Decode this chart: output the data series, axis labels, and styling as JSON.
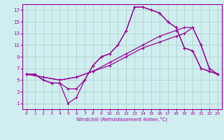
{
  "xlabel": "Windchill (Refroidissement éolien,°C)",
  "xlim": [
    -0.5,
    23.5
  ],
  "ylim": [
    0,
    18
  ],
  "xticks": [
    0,
    1,
    2,
    3,
    4,
    5,
    6,
    7,
    8,
    9,
    10,
    11,
    12,
    13,
    14,
    15,
    16,
    17,
    18,
    19,
    20,
    21,
    22,
    23
  ],
  "yticks": [
    1,
    3,
    5,
    7,
    9,
    11,
    13,
    15,
    17
  ],
  "bg_color": "#d0eef0",
  "line_color": "#990099",
  "grid_color": "#b0d8cc",
  "lines": [
    {
      "x": [
        0,
        1,
        2,
        3,
        4,
        5,
        6,
        7,
        8,
        9,
        10,
        11,
        12,
        13,
        14,
        15,
        16,
        17,
        18,
        19,
        20,
        21,
        22,
        23
      ],
      "y": [
        6,
        6,
        5,
        4.5,
        4.5,
        1,
        2,
        5,
        7.5,
        9,
        9.5,
        11,
        13.5,
        17.5,
        17.5,
        17,
        16.5,
        15,
        14,
        10.5,
        10,
        7,
        6.5,
        6
      ]
    },
    {
      "x": [
        0,
        1,
        2,
        3,
        4,
        5,
        6,
        7,
        8,
        9,
        10,
        11,
        12,
        13,
        14,
        15,
        16,
        17,
        18,
        19,
        20,
        21,
        22,
        23
      ],
      "y": [
        6,
        6,
        5,
        4.5,
        4.5,
        3.5,
        3.5,
        5,
        7.5,
        9,
        9.5,
        11,
        13.5,
        17.5,
        17.5,
        17,
        16.5,
        15,
        14,
        10.5,
        10,
        7,
        6.5,
        6
      ]
    },
    {
      "x": [
        0,
        2,
        4,
        6,
        8,
        10,
        12,
        14,
        16,
        18,
        19,
        20,
        21,
        22,
        23
      ],
      "y": [
        6,
        5.5,
        5,
        5.5,
        6.5,
        7.5,
        9,
        10.5,
        11.5,
        12.5,
        13,
        14,
        11,
        7,
        6
      ]
    },
    {
      "x": [
        0,
        2,
        4,
        6,
        8,
        10,
        12,
        14,
        16,
        18,
        19,
        20,
        21,
        22,
        23
      ],
      "y": [
        6,
        5.5,
        5,
        5.5,
        6.5,
        8,
        9.5,
        11,
        12.5,
        13.5,
        14,
        14,
        11,
        7,
        6
      ]
    }
  ]
}
